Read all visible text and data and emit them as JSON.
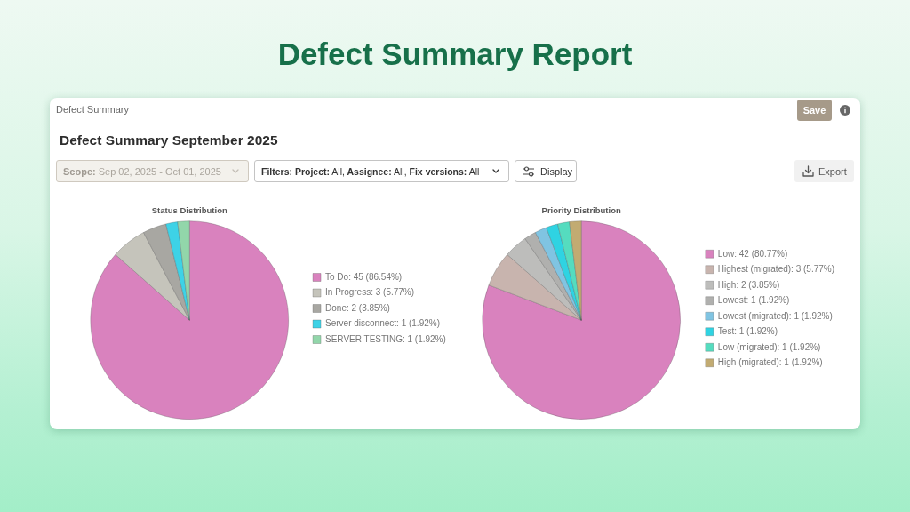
{
  "chart_data": [
    {
      "type": "other",
      "title": "Defect Summary Report",
      "subtitle": "Defect Summary September 2025",
      "annotations": [
        "Defect Summary",
        "Save",
        "Scope: Sep 02, 2025 - Oct 01, 2025",
        "Filters: Project: All, Assignee: All, Fix versions: All",
        "Display",
        "Export"
      ]
    },
    {
      "type": "pie",
      "title": "Status Distribution",
      "categories": [
        "To Do: 45 (86.54%)",
        "In Progress: 3 (5.77%)",
        "Done: 2 (3.85%)",
        "Server disconnect: 1 (1.92%)",
        "SERVER TESTING: 1 (1.92%)"
      ],
      "values": [
        45,
        3,
        2,
        1,
        1
      ],
      "colors": [
        "#d982be",
        "#c5c4bb",
        "#a8a7a2",
        "#3ed2e6",
        "#92d6aa"
      ],
      "legend": "right"
    },
    {
      "type": "pie",
      "title": "Priority Distribution",
      "categories": [
        "Low: 42 (80.77%)",
        "Highest (migrated): 3 (5.77%)",
        "High: 2 (3.85%)",
        "Lowest: 1 (1.92%)",
        "Lowest (migrated): 1 (1.92%)",
        "Test: 1 (1.92%)",
        "Low (migrated): 1 (1.92%)",
        "High (migrated): 1 (1.92%)"
      ],
      "values": [
        42,
        3,
        2,
        1,
        1,
        1,
        1,
        1
      ],
      "colors": [
        "#d982be",
        "#c8b4ae",
        "#bdbdbb",
        "#b0b0ae",
        "#80c4e2",
        "#2fd3e2",
        "#55dcbf",
        "#c2ab72"
      ],
      "legend": "right"
    }
  ]
}
